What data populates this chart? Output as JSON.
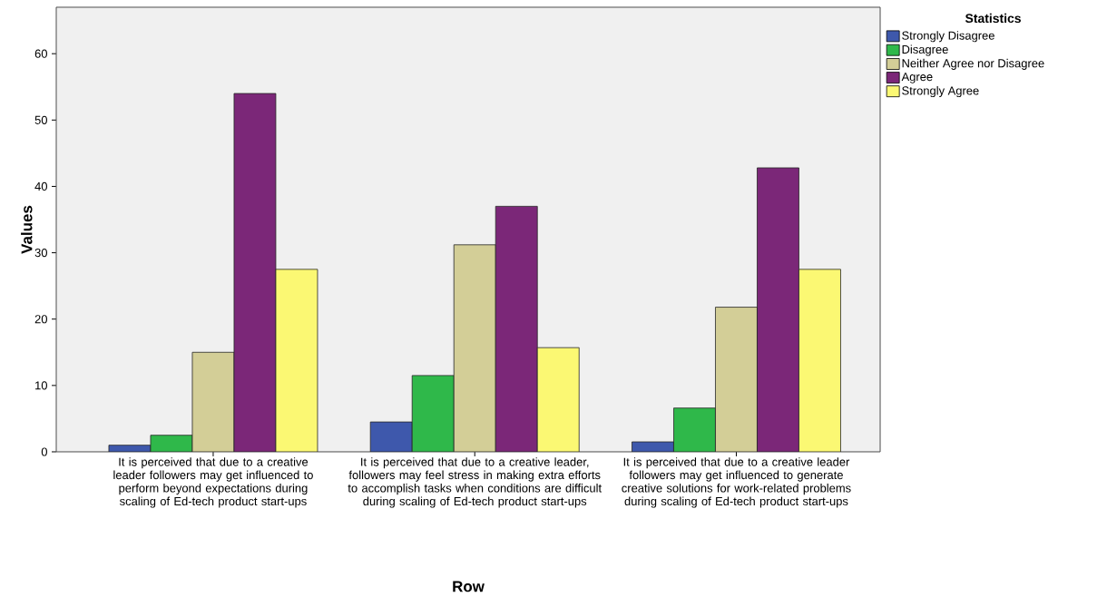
{
  "chart_data": {
    "type": "bar",
    "xlabel": "Row",
    "ylabel": "Values",
    "legend_title": "Statistics",
    "legend": "top right",
    "categories": [
      "It is perceived that due to a creative leader followers may get  influenced to perform beyond expectations during scaling of Ed-tech product start-ups",
      "It is perceived that due to a creative leader, followers may feel stress in making  extra efforts to accomplish tasks when conditions are difficult during scaling of Ed-tech product start-ups",
      "It is perceived that due to  a creative leader followers may get influenced to  generate  creative solutions for work-related problems during scaling of Ed-tech product start-ups"
    ],
    "series": [
      {
        "name": "Strongly Disagree",
        "color": "#3e58ac",
        "values": [
          1.0,
          4.5,
          1.5
        ]
      },
      {
        "name": "Disagree",
        "color": "#2fb84a",
        "values": [
          2.5,
          11.5,
          6.6
        ]
      },
      {
        "name": "Neither Agree nor Disagree",
        "color": "#d3ce97",
        "values": [
          15.0,
          31.2,
          21.8
        ]
      },
      {
        "name": "Agree",
        "color": "#7b2778",
        "values": [
          54.0,
          37.0,
          42.8
        ]
      },
      {
        "name": "Strongly Agree",
        "color": "#fbf873",
        "values": [
          27.5,
          15.7,
          27.5
        ]
      }
    ],
    "ylim": [
      0,
      67
    ],
    "yticks": [
      0,
      10,
      20,
      30,
      40,
      50,
      60
    ]
  }
}
